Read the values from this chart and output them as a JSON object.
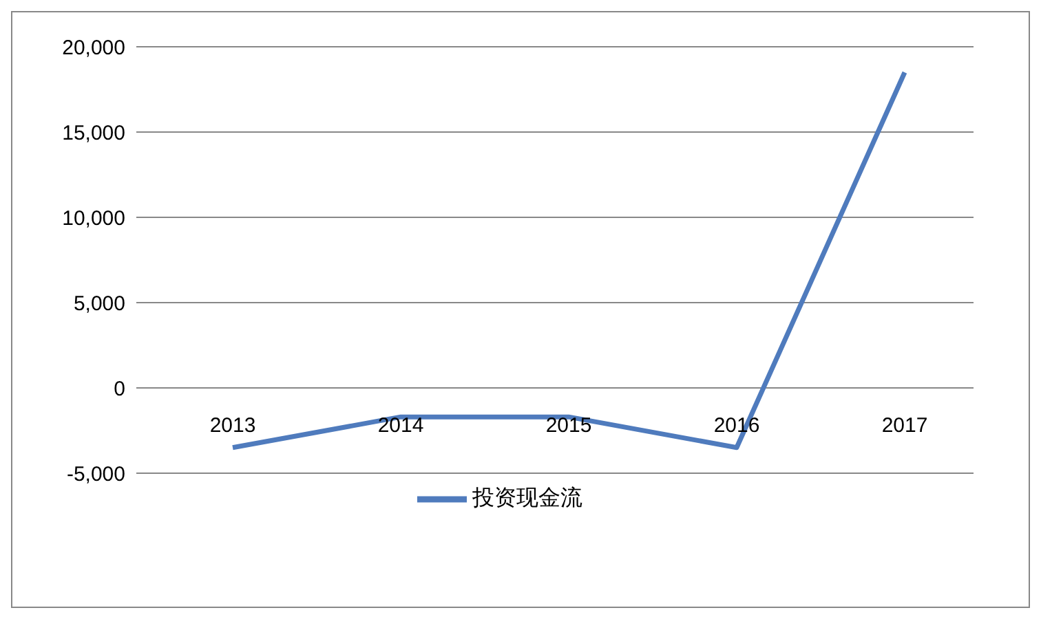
{
  "chart_data": {
    "type": "line",
    "categories": [
      "2013",
      "2014",
      "2015",
      "2016",
      "2017"
    ],
    "series": [
      {
        "name": "投资现金流",
        "color": "#4f7bbd",
        "values": [
          -3500,
          -1700,
          -1700,
          -3500,
          18500
        ]
      }
    ],
    "ylim": [
      -5000,
      20000
    ],
    "yticks": [
      {
        "value": -5000,
        "label": "-5,000"
      },
      {
        "value": 0,
        "label": "0"
      },
      {
        "value": 5000,
        "label": "5,000"
      },
      {
        "value": 10000,
        "label": "10,000"
      },
      {
        "value": 15000,
        "label": "15,000"
      },
      {
        "value": 20000,
        "label": "20,000"
      }
    ],
    "grid": "y",
    "legend": "bottom",
    "marker": "none",
    "line_style": "solid"
  }
}
